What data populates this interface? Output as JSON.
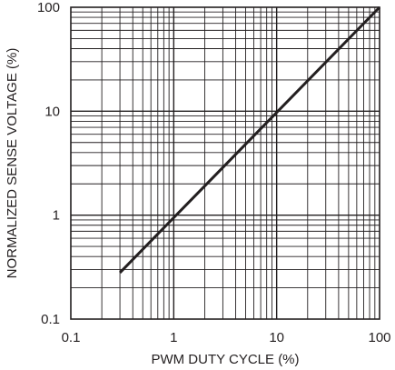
{
  "chart_data": {
    "type": "line",
    "title": "",
    "xlabel": "PWM DUTY CYCLE (%)",
    "ylabel": "NORMALIZED SENSE VOLTAGE (%)",
    "xscale": "log",
    "yscale": "log",
    "xlim": [
      0.1,
      100
    ],
    "ylim": [
      0.1,
      100
    ],
    "xticks": [
      "0.1",
      "1",
      "10",
      "100"
    ],
    "yticks": [
      "0.1",
      "1",
      "10",
      "100"
    ],
    "grid": true,
    "legend": "none",
    "series": [
      {
        "x": [
          0.3,
          100
        ],
        "y": [
          0.28,
          100
        ]
      }
    ],
    "colors": {
      "line": "#231f20",
      "grid": "#231f20",
      "background": "#ffffff"
    }
  }
}
